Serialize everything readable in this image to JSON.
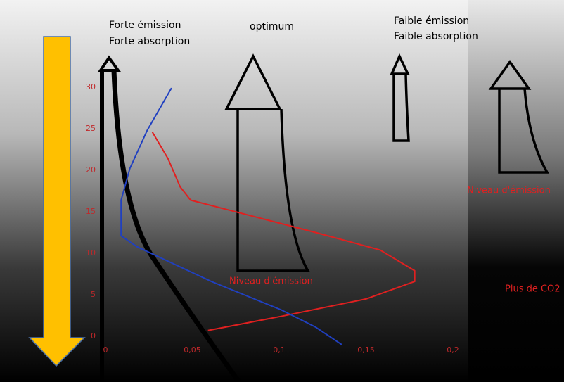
{
  "chart_data": {
    "type": "line",
    "xlim": [
      -0.005,
      0.21
    ],
    "ylim": [
      -2,
      33
    ],
    "xticks": [
      0,
      {
        "value": 0.05,
        "label": "0,05"
      },
      {
        "value": 0.1,
        "label": "0,1"
      },
      {
        "value": 0.15,
        "label": "0,15"
      },
      {
        "value": 0.2,
        "label": "0,2"
      }
    ],
    "yticks": [
      0,
      5,
      10,
      15,
      20,
      25,
      30
    ],
    "grid": true,
    "tick_color": "#c0282a",
    "series": [
      {
        "color": "#e02020",
        "x": [
          0.059,
          0.101,
          0.15,
          0.178,
          0.178,
          0.158,
          0.121,
          0.073,
          0.049,
          0.043,
          0.036,
          0.027
        ],
        "values": [
          0.7,
          2.4,
          4.5,
          6.6,
          7.9,
          10.4,
          12.5,
          15.1,
          16.4,
          18,
          21.4,
          24.6
        ]
      },
      {
        "color": "#2040c0",
        "x": [
          0.038,
          0.024,
          0.014,
          0.009,
          0.009,
          0.018,
          0.061,
          0.101,
          0.121,
          0.136
        ],
        "values": [
          29.9,
          24.8,
          20.2,
          16.4,
          12.1,
          10.8,
          6.6,
          3.2,
          1.1,
          -1
        ]
      }
    ],
    "annotations": [
      "Forte émission",
      "Forte absorption",
      "optimum",
      "Faible émission",
      "Faible absorption",
      "Niveau d'émission",
      "Niveau d'émission",
      "Plus de CO2"
    ]
  }
}
